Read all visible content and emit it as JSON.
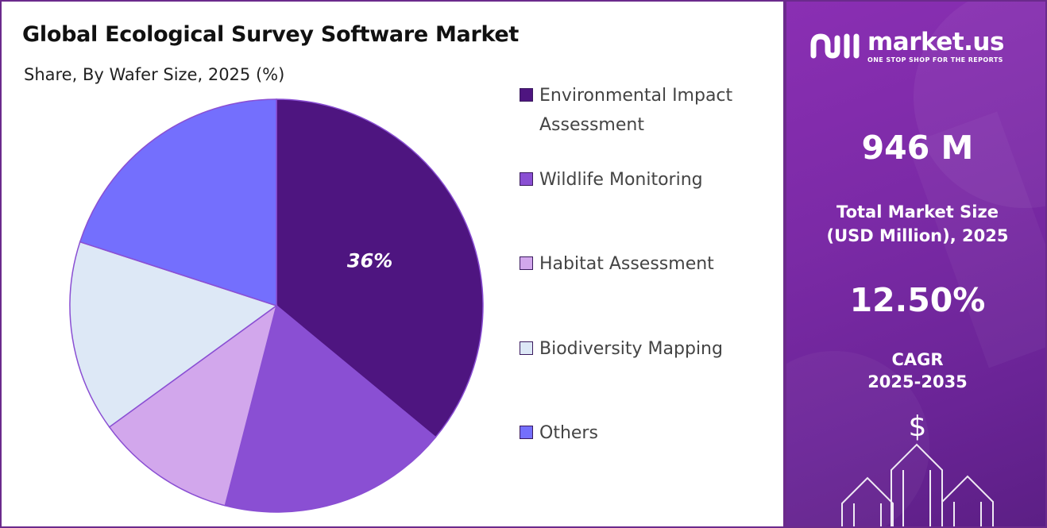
{
  "chart_data": {
    "type": "pie",
    "title": "Global Ecological Survey Software Market",
    "subtitle": "Share, By Wafer Size, 2025 (%)",
    "slices": [
      {
        "label": "Environmental Impact Assessment",
        "value": 36,
        "color": "#4e1580",
        "data_label": "36%"
      },
      {
        "label": "Wildlife Monitoring",
        "value": 18,
        "color": "#8a4fd3"
      },
      {
        "label": "Habitat Assessment",
        "value": 11,
        "color": "#d2a7ec"
      },
      {
        "label": "Biodiversity Mapping",
        "value": 15,
        "color": "#dde8f6"
      },
      {
        "label": "Others",
        "value": 20,
        "color": "#746ffd"
      }
    ],
    "legend_position": "right"
  },
  "legend": {
    "items": [
      {
        "label": "Environmental Impact Assessment",
        "color": "#4e1580"
      },
      {
        "label": "Wildlife Monitoring",
        "color": "#8a4fd3"
      },
      {
        "label": "Habitat Assessment",
        "color": "#d2a7ec"
      },
      {
        "label": "Biodiversity Mapping",
        "color": "#dde8f6"
      },
      {
        "label": "Others",
        "color": "#746ffd"
      }
    ]
  },
  "brand": {
    "name": "market.us",
    "tagline": "ONE STOP SHOP FOR THE REPORTS"
  },
  "stats": {
    "market_size_value": "946 M",
    "market_size_label_line1": "Total Market Size",
    "market_size_label_line2": "(USD Million), 2025",
    "cagr_value": "12.50%",
    "cagr_label_line1": "CAGR",
    "cagr_label_line2": "2025-2035",
    "currency_symbol": "$"
  },
  "colors": {
    "panel_border": "#6b2a8c",
    "panel_purple": "#7b2aa6"
  }
}
